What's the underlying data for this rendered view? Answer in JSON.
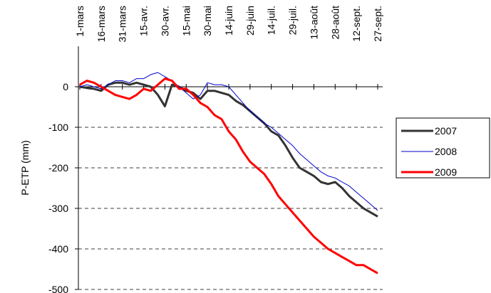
{
  "chart_data": {
    "type": "line",
    "y_label": "P-ETP (mm)",
    "categories": [
      "1-mars",
      null,
      null,
      "16-mars",
      null,
      null,
      "31-mars",
      null,
      null,
      "15-avr.",
      null,
      null,
      "30-avr.",
      null,
      null,
      "15-mai",
      null,
      null,
      "30-mai",
      null,
      null,
      "14-juin",
      null,
      null,
      "29-juin",
      null,
      null,
      "14-juil.",
      null,
      null,
      "29-juil.",
      null,
      null,
      "13-août",
      null,
      null,
      "28-août",
      null,
      null,
      "12-sept.",
      null,
      null,
      "27-sept."
    ],
    "series": [
      {
        "name": "2007",
        "color": "#333333",
        "width": 3,
        "values": [
          0,
          -3,
          -5,
          -10,
          5,
          10,
          10,
          5,
          10,
          5,
          0,
          -20,
          -48,
          5,
          0,
          -10,
          -15,
          -30,
          -10,
          -10,
          -15,
          -20,
          -35,
          -45,
          -60,
          -75,
          -90,
          -110,
          -120,
          -145,
          -175,
          -200,
          -210,
          -220,
          -235,
          -240,
          -235,
          -250,
          -270,
          -285,
          -300,
          -310,
          -320
        ]
      },
      {
        "name": "2008",
        "color": "#0000cc",
        "width": 1,
        "values": [
          0,
          5,
          0,
          -5,
          5,
          15,
          15,
          10,
          20,
          20,
          30,
          35,
          25,
          15,
          0,
          -15,
          -30,
          -20,
          10,
          5,
          5,
          0,
          -20,
          -40,
          -60,
          -75,
          -90,
          -100,
          -115,
          -130,
          -145,
          -165,
          -180,
          -195,
          -210,
          -220,
          -225,
          -235,
          -245,
          -260,
          -275,
          -290,
          -305
        ]
      },
      {
        "name": "2009",
        "color": "#ff0000",
        "width": 3,
        "values": [
          5,
          15,
          10,
          0,
          -10,
          -20,
          -25,
          -30,
          -20,
          -5,
          -10,
          5,
          20,
          15,
          -5,
          -5,
          -20,
          -40,
          -50,
          -70,
          -80,
          -110,
          -130,
          -160,
          -185,
          -200,
          -215,
          -240,
          -270,
          -290,
          -310,
          -330,
          -350,
          -370,
          -385,
          -400,
          -410,
          -420,
          -430,
          -440,
          -440,
          -450,
          -460
        ]
      }
    ],
    "ylim": [
      -500,
      100
    ],
    "yticks": [
      0,
      -100,
      -200,
      -300,
      -400,
      -500
    ],
    "grid": true,
    "legend": "right"
  }
}
